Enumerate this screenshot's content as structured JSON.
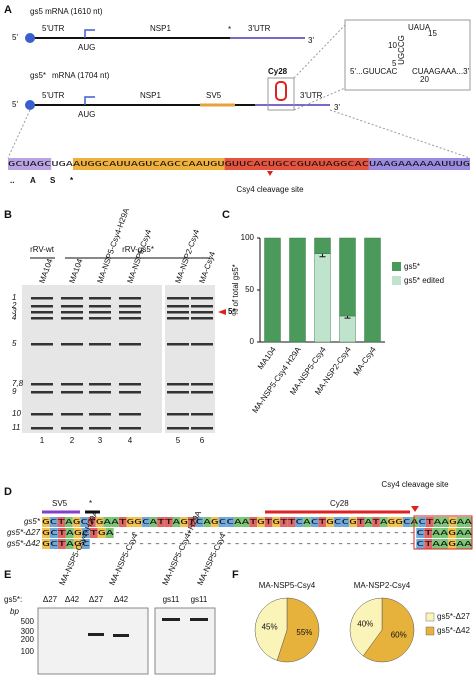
{
  "panels": {
    "a": {
      "letter": "A",
      "gs5": {
        "title": "gs5 mRNA (1610 nt)",
        "five": "5'",
        "utr5": "5'UTR",
        "nsp1": "NSP1",
        "aug": "AUG",
        "stop": "*",
        "utr3": "3'UTR",
        "three": "3'"
      },
      "gs5star": {
        "name": "gs5*",
        "title": "mRNA (1704 nt)",
        "five": "5'",
        "utr5": "5'UTR",
        "nsp1": "NSP1",
        "aug": "AUG",
        "sv5": "SV5",
        "cy28": "Cy28",
        "utr3": "3'UTR",
        "three": "3'"
      },
      "hairpin": {
        "left": "5'...GUUCAC",
        "right": "CUAAGAAA...3'",
        "stem": "UGCCG",
        "loop": "UAUA",
        "n5": "5",
        "n10": "10",
        "n15": "15",
        "n20": "20"
      },
      "sequence": "GCUAGCUGAAUGGCAUUAGUCAGCCAAUGUGUUCACUGCCGUAUAGGCACUAAGAAAAAAUUUG",
      "translation": [
        "..",
        "A",
        "S",
        "*"
      ],
      "cleavage": "Csy4 cleavage site"
    },
    "b": {
      "letter": "B",
      "wt": "rRV-wt",
      "gs5star": "rRV-gs5*",
      "lanes": [
        "MA104",
        "MA104",
        "MA-NSP5-Csy4-H29A",
        "MA-NSP5-Csy4",
        "MA-NSP2-Csy4",
        "MA-Csy4"
      ],
      "lane_numbers": [
        "1",
        "2",
        "3",
        "4",
        "5",
        "6"
      ],
      "segments": [
        "1",
        "2",
        "3",
        "4",
        "5",
        "7,8",
        "9",
        "10",
        "11"
      ],
      "marker": "5*"
    },
    "c": {
      "letter": "C",
      "chart": {
        "type": "bar",
        "stacked": true,
        "ylabel": "% of total gs5*",
        "categories": [
          "MA104",
          "MA-NSP5-Csy4 H29A",
          "MA-NSP5-Csy4",
          "MA-NSP2-Csy4",
          "MA-Csy4"
        ],
        "series": [
          {
            "name": "gs5*",
            "color": "#4c9a5b",
            "values": [
              100,
              100,
              15,
              75,
              100
            ]
          },
          {
            "name": "gs5* edited",
            "color": "#bfe3cc",
            "values": [
              0,
              0,
              85,
              25,
              0
            ],
            "errors": [
              null,
              null,
              3,
              2,
              null
            ]
          }
        ],
        "ylim": [
          0,
          100
        ],
        "yticks": [
          0,
          50,
          100
        ]
      }
    },
    "d": {
      "letter": "D",
      "sv5": "SV5",
      "stop": "*",
      "cy28": "Cy28",
      "cleavage": "Csy4 cleavage site",
      "rows": [
        {
          "name": "gs5*",
          "seq": "GCTAGCTGAATGGCATTAGTCAGCCAATGTGTTCACTGCCGTATAGGCACTAAGAA"
        },
        {
          "name": "gs5*-Δ27",
          "seq": "GCTAGCTGA--------------------------------------CTAAGAA"
        },
        {
          "name": "gs5*-Δ42",
          "seq": "GCTAGC-----------------------------------------CTAAGAA"
        }
      ]
    },
    "e": {
      "letter": "E",
      "lanes": [
        "MA-NSP5-Csy4+H29A",
        "MA-NSP5-Csy4",
        "MA-NSP5-Csy4+H29A",
        "MA-NSP5-Csy4"
      ],
      "gs5_label": "gs5*:",
      "samples": [
        "Δ27",
        "Δ42",
        "Δ27",
        "Δ42",
        "gs11",
        "gs11"
      ],
      "unit": "bp",
      "ladder": [
        "500",
        "300",
        "200",
        "100"
      ]
    },
    "f": {
      "letter": "F",
      "labels": [
        "gs5*-Δ27",
        "gs5*-Δ42"
      ],
      "colors": [
        "#fbf4b8",
        "#e6b23c"
      ],
      "charts": [
        {
          "type": "pie",
          "title": "MA-NSP5-Csy4",
          "values": [
            45,
            55
          ],
          "value_labels": [
            "45%",
            "55%"
          ]
        },
        {
          "type": "pie",
          "title": "MA-NSP2-Csy4",
          "values": [
            40,
            60
          ],
          "value_labels": [
            "40%",
            "60%"
          ]
        }
      ]
    }
  }
}
